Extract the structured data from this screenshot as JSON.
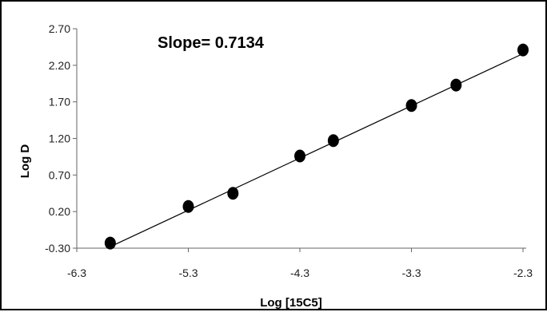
{
  "chart_data": {
    "type": "scatter",
    "xlabel": "Log [15C5]",
    "ylabel": "Log D",
    "annotation": "Slope= 0.7134",
    "xlim": [
      -6.3,
      -2.3
    ],
    "ylim": [
      -0.3,
      2.7
    ],
    "xticks": [
      "-6.3",
      "-5.3",
      "-4.3",
      "-3.3",
      "-2.3"
    ],
    "yticks": [
      "-0.30",
      "0.20",
      "0.70",
      "1.20",
      "1.70",
      "2.20",
      "2.70"
    ],
    "grid": false,
    "legend": "none",
    "marker_color": "#000000",
    "line_color": "#000000",
    "series": [
      {
        "x": [
          -6.0,
          -5.3,
          -4.9,
          -4.3,
          -4.0,
          -3.3,
          -2.9,
          -2.3
        ],
        "y": [
          -0.23,
          0.27,
          0.45,
          0.96,
          1.17,
          1.65,
          1.93,
          2.41
        ]
      }
    ],
    "trendline": {
      "slope": 0.7134,
      "intercept": 4.0
    }
  }
}
